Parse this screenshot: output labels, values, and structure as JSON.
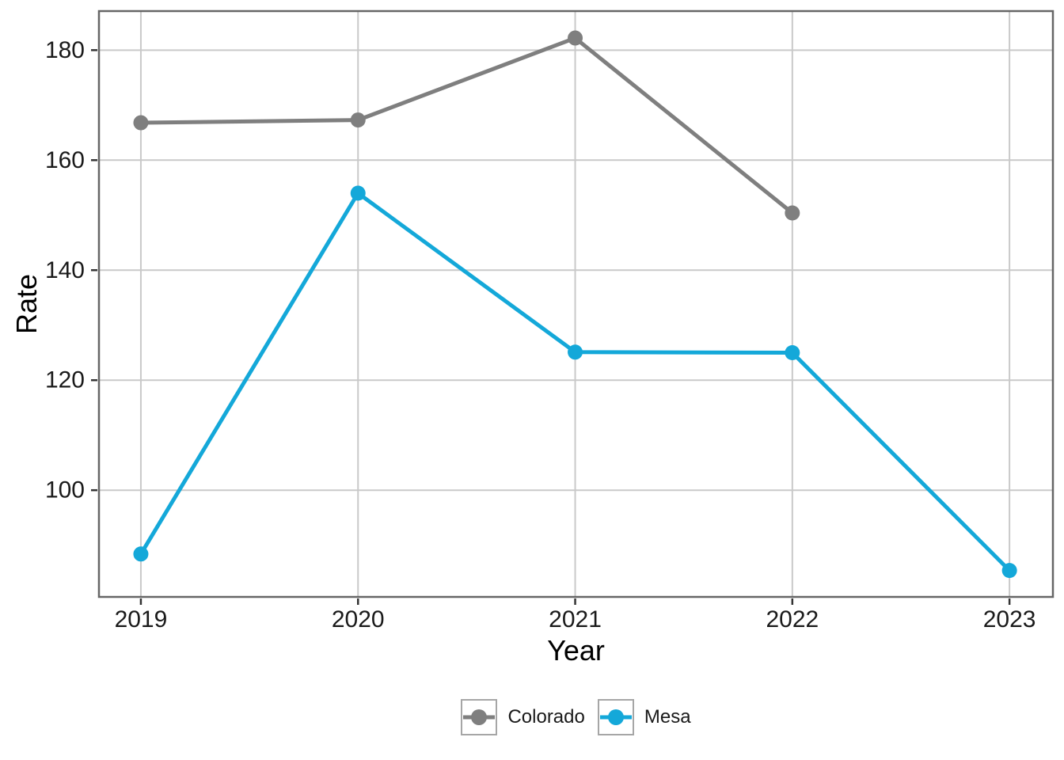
{
  "chart_data": {
    "type": "line",
    "title": "",
    "xlabel": "Year",
    "ylabel": "Rate",
    "x": [
      2019,
      2020,
      2021,
      2022,
      2023
    ],
    "x_tick_labels": [
      "2019",
      "2020",
      "2021",
      "2022",
      "2023"
    ],
    "y_ticks": [
      100,
      120,
      140,
      160,
      180
    ],
    "y_tick_labels": [
      "100",
      "120",
      "140",
      "160",
      "180"
    ],
    "xlim": [
      2018.807,
      2023.2
    ],
    "ylim": [
      80.6,
      187.1
    ],
    "grid": "major-only",
    "legend_position": "bottom-center",
    "series": [
      {
        "name": "Colorado",
        "color": "#7f7f7f",
        "x": [
          2019,
          2020,
          2021,
          2022
        ],
        "values": [
          166.8,
          167.3,
          182.2,
          150.4
        ]
      },
      {
        "name": "Mesa",
        "color": "#14a8d9",
        "x": [
          2019,
          2020,
          2021,
          2022,
          2023
        ],
        "values": [
          88.4,
          154.0,
          125.1,
          125.0,
          85.4
        ]
      }
    ]
  },
  "style": {
    "background": "#ffffff",
    "panel_border": "#666666",
    "gridline": "#c9c9c9",
    "tick_mark": "#333333",
    "tick_text": "#1a1a1a",
    "axis_title_text": "#000000",
    "legend_key_border": "#a6a6a6"
  }
}
